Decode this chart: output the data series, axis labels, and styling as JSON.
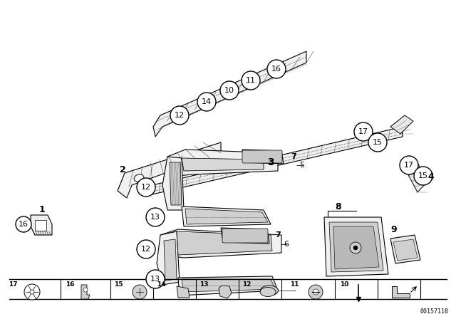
{
  "bg_color": "#ffffff",
  "part_number": "00157118",
  "line_color": "#000000",
  "text_color": "#000000",
  "fig_w": 6.4,
  "fig_h": 4.48,
  "dpi": 100
}
